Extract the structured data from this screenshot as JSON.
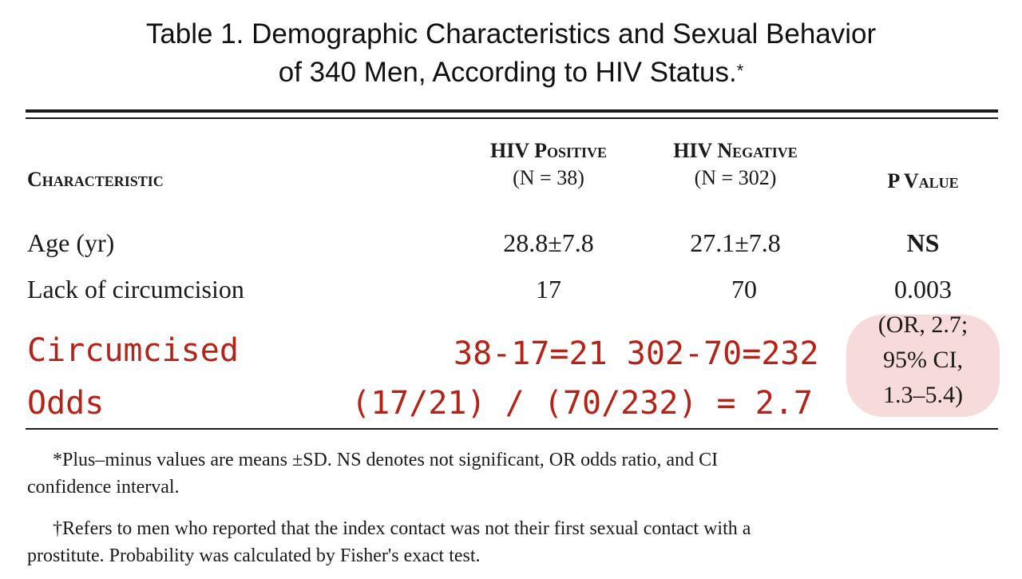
{
  "title": {
    "line1": "Table 1. Demographic Characteristics and Sexual Behavior",
    "line2": "of 340 Men, According to HIV Status.",
    "marker": "*"
  },
  "table": {
    "headers": {
      "characteristic": "Characteristic",
      "positive": "HIV Positive",
      "positive_n": "(N = 38)",
      "negative": "HIV Negative",
      "negative_n": "(N = 302)",
      "p_value": "P Value"
    },
    "rows": [
      {
        "label": "Age (yr)",
        "positive": "28.8±7.8",
        "negative": "27.1±7.8",
        "p": "NS"
      },
      {
        "label": "Lack of circumcision",
        "positive": "17",
        "negative": "70",
        "p": "0.003"
      }
    ],
    "p_note": [
      "(OR, 2.7;",
      "95% CI,",
      "1.3–5.4)"
    ]
  },
  "annotations": {
    "circumcised_label": "Circumcised",
    "circumcised_calc": "38-17=21 302-70=232",
    "odds_label": "Odds",
    "odds_calc": "(17/21) / (70/232) = 2.7",
    "color": "#b42318",
    "highlight_color": "#f7dada"
  },
  "footnotes": {
    "note1_line1": "*Plus–minus values are means ±SD. NS denotes not significant, OR odds ratio, and CI",
    "note1_line2": "confidence interval.",
    "note2_line1": "†Refers to men who reported that the index contact was not their first sexual contact with a",
    "note2_line2": "prostitute. Probability was calculated by Fisher's exact test."
  }
}
